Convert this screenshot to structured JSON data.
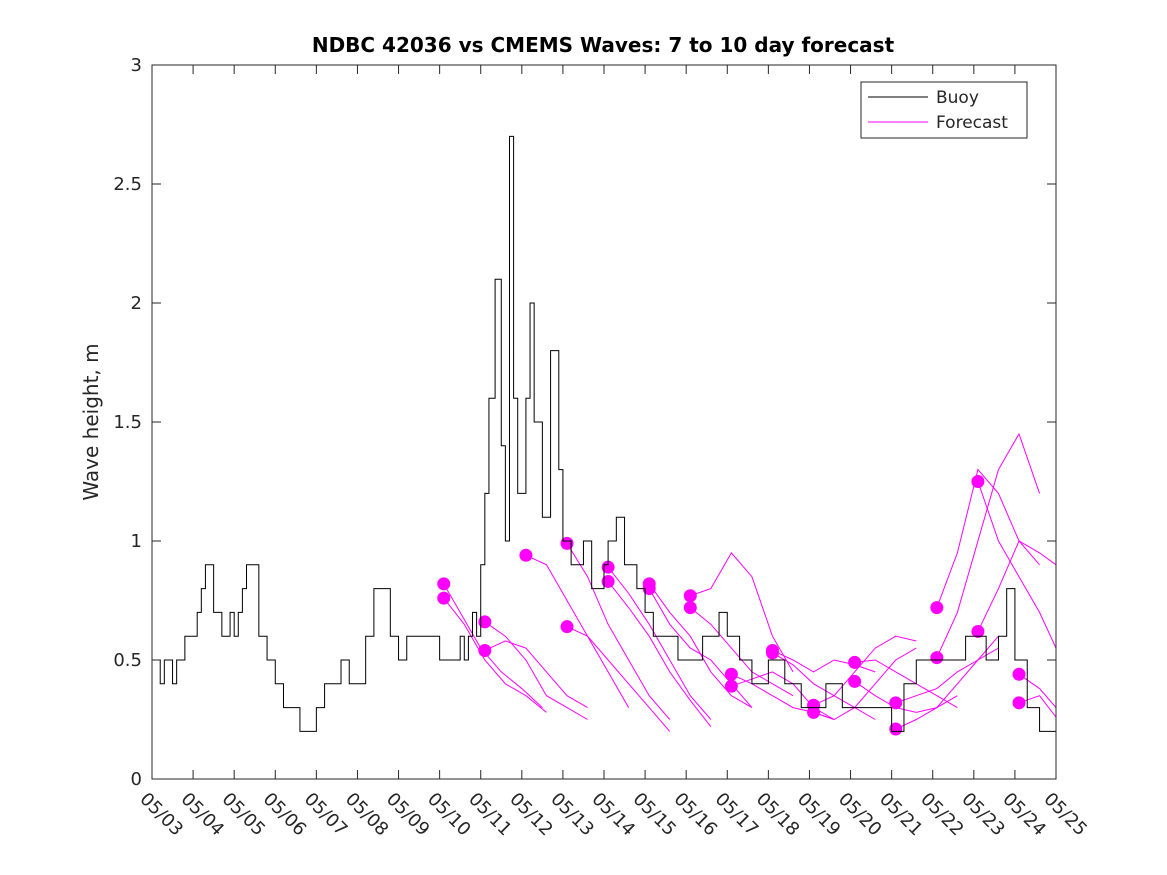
{
  "chart_data": {
    "type": "line",
    "title": "NDBC 42036 vs CMEMS Waves: 7 to 10 day forecast",
    "xlabel": "",
    "ylabel": "Wave height, m",
    "xlim": [
      "05/03",
      "05/25"
    ],
    "ylim": [
      0,
      3
    ],
    "x_ticks": [
      "05/03",
      "05/04",
      "05/05",
      "05/06",
      "05/07",
      "05/08",
      "05/09",
      "05/10",
      "05/11",
      "05/12",
      "05/13",
      "05/14",
      "05/15",
      "05/16",
      "05/17",
      "05/18",
      "05/19",
      "05/20",
      "05/21",
      "05/22",
      "05/23",
      "05/24",
      "05/25"
    ],
    "y_ticks": [
      "0",
      "0.5",
      "1",
      "1.5",
      "2",
      "2.5",
      "3"
    ],
    "grid": false,
    "legend": {
      "placement": "top-right",
      "entries": [
        "Buoy",
        "Forecast"
      ]
    },
    "colors": {
      "buoy": "#000000",
      "forecast": "#ff00ff"
    },
    "series": [
      {
        "name": "Buoy",
        "x_unit": "days since 05/03",
        "x": [
          0,
          0.2,
          0.3,
          0.5,
          0.6,
          0.8,
          1.0,
          1.1,
          1.2,
          1.3,
          1.5,
          1.7,
          1.9,
          2.0,
          2.1,
          2.2,
          2.3,
          2.6,
          2.8,
          3.0,
          3.2,
          3.4,
          3.6,
          3.8,
          4.0,
          4.2,
          4.4,
          4.6,
          4.8,
          5.0,
          5.2,
          5.4,
          5.6,
          5.8,
          6.0,
          6.2,
          6.4,
          6.6,
          6.8,
          7.0,
          7.2,
          7.4,
          7.5,
          7.6,
          7.7,
          7.8,
          7.9,
          8.0,
          8.1,
          8.2,
          8.35,
          8.5,
          8.6,
          8.7,
          8.8,
          8.9,
          9.0,
          9.1,
          9.2,
          9.3,
          9.5,
          9.7,
          9.9,
          10.0,
          10.2,
          10.4,
          10.5,
          10.7,
          10.9,
          11.0,
          11.1,
          11.3,
          11.5,
          11.8,
          12.0,
          12.2,
          12.5,
          12.8,
          13.0,
          13.4,
          13.8,
          14.0,
          14.3,
          14.6,
          15.0,
          15.4,
          15.8,
          16.0,
          16.4,
          16.8,
          17.0,
          17.4,
          17.8,
          18.0,
          18.3,
          18.6,
          18.9,
          19.0,
          19.4,
          19.8,
          20.0,
          20.3,
          20.6,
          20.8,
          21.0,
          21.3,
          21.6,
          21.8,
          22.0
        ],
        "y": [
          0.5,
          0.4,
          0.5,
          0.4,
          0.5,
          0.6,
          0.6,
          0.7,
          0.8,
          0.9,
          0.7,
          0.6,
          0.7,
          0.6,
          0.7,
          0.8,
          0.9,
          0.6,
          0.5,
          0.4,
          0.3,
          0.3,
          0.2,
          0.2,
          0.3,
          0.4,
          0.4,
          0.5,
          0.4,
          0.4,
          0.6,
          0.8,
          0.8,
          0.6,
          0.5,
          0.6,
          0.6,
          0.6,
          0.6,
          0.5,
          0.5,
          0.5,
          0.6,
          0.5,
          0.6,
          0.7,
          0.6,
          0.9,
          1.2,
          1.6,
          2.1,
          1.4,
          1.0,
          2.7,
          1.6,
          1.2,
          1.2,
          1.6,
          2.0,
          1.5,
          1.1,
          1.8,
          1.3,
          1.0,
          0.9,
          0.9,
          1.0,
          0.8,
          0.8,
          0.9,
          1.0,
          1.1,
          0.9,
          0.8,
          0.7,
          0.6,
          0.6,
          0.5,
          0.5,
          0.6,
          0.7,
          0.6,
          0.5,
          0.4,
          0.5,
          0.4,
          0.3,
          0.3,
          0.4,
          0.3,
          0.3,
          0.3,
          0.3,
          0.2,
          0.4,
          0.5,
          0.5,
          0.5,
          0.5,
          0.6,
          0.6,
          0.5,
          0.6,
          0.8,
          0.5,
          0.3,
          0.2,
          0.2,
          0.3
        ]
      },
      {
        "name": "Forecast",
        "x_unit": "days since 05/03",
        "runs": [
          {
            "x": [
              7.1,
              7.5,
              8.0,
              8.5,
              9.0,
              9.5
            ],
            "y": [
              0.82,
              0.7,
              0.55,
              0.45,
              0.38,
              0.3
            ]
          },
          {
            "x": [
              7.1,
              7.6,
              8.1,
              8.6,
              9.1,
              9.6
            ],
            "y": [
              0.76,
              0.65,
              0.5,
              0.4,
              0.35,
              0.28
            ]
          },
          {
            "x": [
              8.1,
              8.6,
              9.1,
              9.6,
              10.1,
              10.6
            ],
            "y": [
              0.66,
              0.6,
              0.5,
              0.35,
              0.3,
              0.25
            ]
          },
          {
            "x": [
              8.1,
              8.6,
              9.1,
              9.6,
              10.1,
              10.6
            ],
            "y": [
              0.54,
              0.58,
              0.55,
              0.45,
              0.35,
              0.3
            ]
          },
          {
            "x": [
              9.1,
              9.6,
              10.1,
              10.6,
              11.1,
              11.6
            ],
            "y": [
              0.94,
              0.9,
              0.75,
              0.6,
              0.45,
              0.3
            ]
          },
          {
            "x": [
              10.1,
              10.6,
              11.1,
              11.6,
              12.1,
              12.6
            ],
            "y": [
              0.99,
              0.85,
              0.65,
              0.5,
              0.35,
              0.25
            ]
          },
          {
            "x": [
              10.1,
              10.6,
              11.1,
              11.6,
              12.1,
              12.6
            ],
            "y": [
              0.64,
              0.6,
              0.5,
              0.4,
              0.3,
              0.2
            ]
          },
          {
            "x": [
              11.1,
              11.6,
              12.1,
              12.6,
              13.1,
              13.6
            ],
            "y": [
              0.89,
              0.78,
              0.65,
              0.5,
              0.35,
              0.25
            ]
          },
          {
            "x": [
              11.1,
              11.6,
              12.1,
              12.6,
              13.1,
              13.6
            ],
            "y": [
              0.83,
              0.72,
              0.6,
              0.45,
              0.33,
              0.22
            ]
          },
          {
            "x": [
              12.1,
              12.6,
              13.1,
              13.6,
              14.1,
              14.6
            ],
            "y": [
              0.82,
              0.7,
              0.6,
              0.45,
              0.35,
              0.3
            ]
          },
          {
            "x": [
              12.1,
              12.6,
              13.1,
              13.6,
              14.1,
              14.6
            ],
            "y": [
              0.8,
              0.65,
              0.55,
              0.5,
              0.4,
              0.3
            ]
          },
          {
            "x": [
              13.1,
              13.6,
              14.1,
              14.6,
              15.1,
              15.6
            ],
            "y": [
              0.77,
              0.8,
              0.95,
              0.85,
              0.6,
              0.45
            ]
          },
          {
            "x": [
              13.1,
              13.6,
              14.1,
              14.6,
              15.1,
              15.6
            ],
            "y": [
              0.72,
              0.65,
              0.55,
              0.45,
              0.4,
              0.35
            ]
          },
          {
            "x": [
              14.1,
              14.6,
              15.1,
              15.6,
              16.1,
              16.6
            ],
            "y": [
              0.44,
              0.4,
              0.35,
              0.3,
              0.28,
              0.25
            ]
          },
          {
            "x": [
              14.1,
              14.6,
              15.1,
              15.6,
              16.1,
              16.6
            ],
            "y": [
              0.39,
              0.42,
              0.45,
              0.4,
              0.3,
              0.25
            ]
          },
          {
            "x": [
              15.1,
              15.6,
              16.1,
              16.6,
              17.1,
              17.6
            ],
            "y": [
              0.54,
              0.5,
              0.45,
              0.5,
              0.48,
              0.45
            ]
          },
          {
            "x": [
              15.1,
              15.6,
              16.1,
              16.6,
              17.1,
              17.6
            ],
            "y": [
              0.53,
              0.48,
              0.4,
              0.35,
              0.3,
              0.25
            ]
          },
          {
            "x": [
              16.1,
              16.6,
              17.1,
              17.6,
              18.1,
              18.6
            ],
            "y": [
              0.31,
              0.35,
              0.45,
              0.55,
              0.6,
              0.58
            ]
          },
          {
            "x": [
              16.1,
              16.6,
              17.1,
              17.6,
              18.1,
              18.6
            ],
            "y": [
              0.28,
              0.25,
              0.3,
              0.4,
              0.5,
              0.55
            ]
          },
          {
            "x": [
              17.1,
              17.6,
              18.1,
              18.6,
              19.1,
              19.6
            ],
            "y": [
              0.49,
              0.5,
              0.45,
              0.4,
              0.35,
              0.3
            ]
          },
          {
            "x": [
              17.1,
              17.6,
              18.1,
              18.6,
              19.1,
              19.6
            ],
            "y": [
              0.41,
              0.35,
              0.3,
              0.28,
              0.3,
              0.35
            ]
          },
          {
            "x": [
              18.1,
              18.6,
              19.1,
              19.6,
              20.1,
              20.6
            ],
            "y": [
              0.32,
              0.35,
              0.38,
              0.45,
              0.5,
              0.55
            ]
          },
          {
            "x": [
              18.1,
              18.6,
              19.1,
              19.6,
              20.1,
              20.6
            ],
            "y": [
              0.21,
              0.25,
              0.3,
              0.4,
              0.5,
              0.6
            ]
          },
          {
            "x": [
              19.1,
              19.6,
              20.1,
              20.6,
              21.1,
              21.6
            ],
            "y": [
              0.72,
              0.95,
              1.3,
              1.2,
              1.0,
              0.9
            ]
          },
          {
            "x": [
              19.1,
              19.6,
              20.1,
              20.6,
              21.1,
              21.6
            ],
            "y": [
              0.51,
              0.7,
              1.0,
              1.3,
              1.45,
              1.2
            ]
          },
          {
            "x": [
              20.1,
              20.6,
              21.1,
              21.6,
              22.0
            ],
            "y": [
              1.25,
              1.0,
              0.85,
              0.7,
              0.55
            ]
          },
          {
            "x": [
              20.1,
              20.6,
              21.1,
              21.6,
              22.0
            ],
            "y": [
              0.62,
              0.8,
              1.0,
              0.95,
              0.9
            ]
          },
          {
            "x": [
              21.1,
              21.6,
              22.0
            ],
            "y": [
              0.44,
              0.38,
              0.3
            ]
          },
          {
            "x": [
              21.1,
              21.6,
              22.0
            ],
            "y": [
              0.32,
              0.35,
              0.26
            ]
          }
        ]
      }
    ]
  }
}
